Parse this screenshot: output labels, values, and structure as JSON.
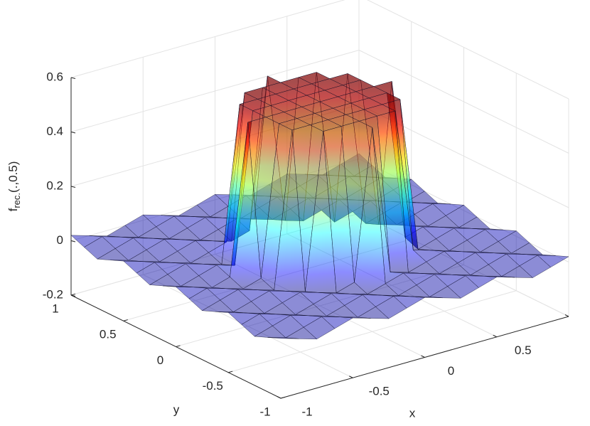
{
  "chart_data": {
    "type": "surface3d",
    "xlabel": "x",
    "ylabel": "y",
    "zlabel": {
      "text": "f",
      "subscript": "rec.",
      "suffix": "(.,0.5)"
    },
    "xlim": [
      -1,
      1
    ],
    "ylim": [
      -1,
      1
    ],
    "zlim": [
      -0.2,
      0.6
    ],
    "xticks": [
      -1,
      -0.5,
      0,
      0.5,
      1
    ],
    "yticks": [
      -1,
      -0.5,
      0,
      0.5,
      1
    ],
    "zticks": [
      -0.2,
      0,
      0.2,
      0.4,
      0.6
    ],
    "grid": true,
    "colormap": "jet",
    "alpha": 0.45,
    "x": [
      -1,
      -0.875,
      -0.75,
      -0.625,
      -0.5,
      -0.375,
      -0.25,
      -0.125,
      0,
      0.125,
      0.25,
      0.375,
      0.5,
      0.625,
      0.75,
      0.875,
      1
    ],
    "y": [
      -1,
      -0.875,
      -0.75,
      -0.625,
      -0.5,
      -0.375,
      -0.25,
      -0.125,
      0,
      0.125,
      0.25,
      0.375,
      0.5,
      0.625,
      0.75,
      0.875,
      1
    ],
    "z": [
      [
        0.02,
        0,
        -0.02,
        0,
        0.02,
        0,
        -0.02,
        0,
        0.02,
        0,
        -0.02,
        0,
        0.02,
        0,
        -0.02,
        0,
        0.02
      ],
      [
        0,
        -0.02,
        0,
        0.02,
        0,
        -0.02,
        0,
        0.02,
        0,
        -0.02,
        0,
        0.02,
        0,
        -0.02,
        0,
        0.02,
        0
      ],
      [
        -0.02,
        0,
        0.02,
        0,
        -0.02,
        0,
        0.02,
        0,
        -0.02,
        0,
        0.02,
        0,
        -0.02,
        0,
        0.02,
        0,
        -0.02
      ],
      [
        0,
        0.02,
        0,
        -0.02,
        0,
        0.02,
        0,
        -0.02,
        0,
        0.02,
        0,
        -0.02,
        0,
        0.02,
        0,
        -0.02,
        0
      ],
      [
        0.02,
        0,
        -0.02,
        0,
        0.02,
        0,
        -0.02,
        0,
        0.55,
        0,
        -0.02,
        0,
        0.02,
        0,
        -0.02,
        0,
        0.02
      ],
      [
        0,
        -0.02,
        0,
        0.02,
        0,
        -0.02,
        0.55,
        0.55,
        0.55,
        0.55,
        0.55,
        0.02,
        0,
        -0.02,
        0,
        0.02,
        0
      ],
      [
        -0.02,
        0,
        0.02,
        0,
        -0.02,
        0.55,
        0.55,
        0.55,
        0.55,
        0.55,
        0.55,
        0.55,
        -0.02,
        0,
        0.02,
        0,
        -0.02
      ],
      [
        0,
        0.02,
        0,
        -0.02,
        0,
        0.55,
        0.55,
        0.55,
        0.55,
        0.55,
        0.55,
        0.55,
        0,
        0.02,
        0,
        -0.02,
        0
      ],
      [
        0.02,
        0,
        -0.02,
        0,
        0.55,
        0.55,
        0.55,
        0.55,
        0.55,
        0.55,
        0.55,
        0.55,
        0.55,
        0,
        -0.02,
        0,
        0.02
      ],
      [
        0,
        -0.02,
        0,
        0.02,
        0,
        0.55,
        0.55,
        0.55,
        0.55,
        0.55,
        0.55,
        0.55,
        0,
        -0.02,
        0,
        0.02,
        0
      ],
      [
        -0.02,
        0,
        0.02,
        0,
        -0.02,
        0.55,
        0.55,
        0.55,
        0.55,
        0.55,
        0.55,
        0.55,
        -0.02,
        0,
        0.02,
        0,
        -0.02
      ],
      [
        0,
        0.02,
        0,
        -0.02,
        0,
        0.02,
        0.55,
        0.55,
        0.55,
        0.55,
        0.55,
        -0.02,
        0,
        0.02,
        0,
        -0.02,
        0
      ],
      [
        0.02,
        0,
        -0.02,
        0,
        0.02,
        0,
        -0.02,
        0,
        0.55,
        0,
        -0.02,
        0,
        0.02,
        0,
        -0.02,
        0,
        0.02
      ],
      [
        0,
        -0.02,
        0,
        0.02,
        0,
        -0.02,
        0,
        0.02,
        0,
        -0.02,
        0,
        0.02,
        0,
        -0.02,
        0,
        0.02,
        0
      ],
      [
        -0.02,
        0,
        0.02,
        0,
        -0.02,
        0,
        0.02,
        0,
        -0.02,
        0,
        0.02,
        0,
        -0.02,
        0,
        0.02,
        0,
        -0.02
      ],
      [
        0,
        0.02,
        0,
        -0.02,
        0,
        0.02,
        0,
        -0.02,
        0,
        0.02,
        0,
        -0.02,
        0,
        0.02,
        0,
        -0.02,
        0
      ],
      [
        0.02,
        0,
        -0.02,
        0,
        0.02,
        0,
        -0.02,
        0,
        0.02,
        0,
        -0.02,
        0,
        0.02,
        0,
        -0.02,
        0,
        0.02
      ]
    ]
  }
}
